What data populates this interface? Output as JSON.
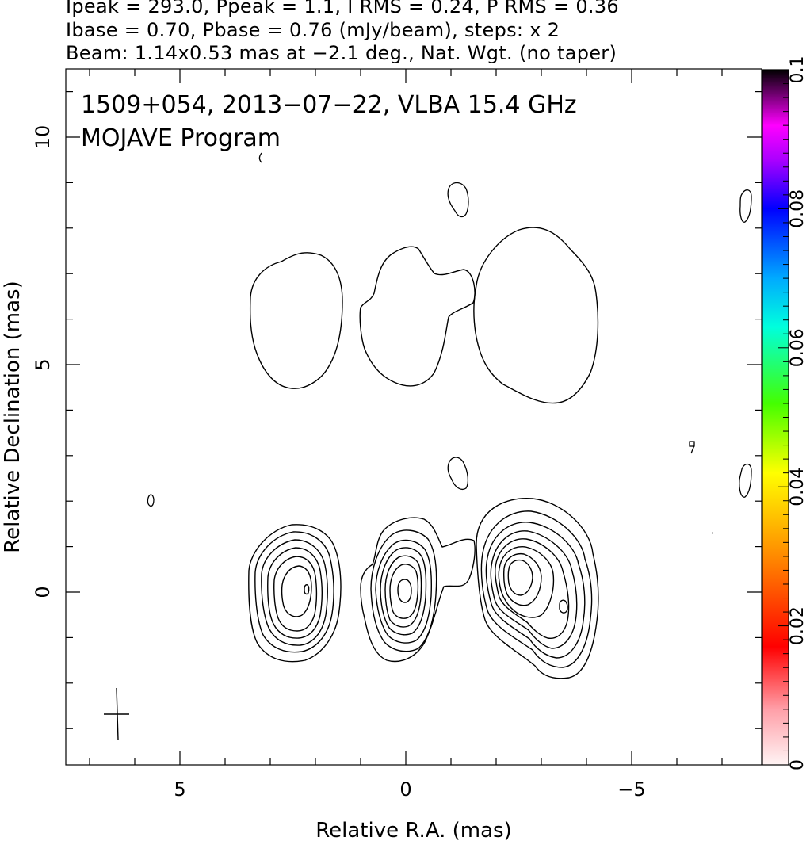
{
  "header": {
    "line1": "Ipeak = 293.0, Ppeak = 1.1, I RMS = 0.24, P RMS = 0.36",
    "line2": "Ibase = 0.70, Pbase = 0.76 (mJy/beam), steps: x 2",
    "line3": "Beam: 1.14x0.53 mas at −2.1 deg., Nat. Wgt. (no taper)"
  },
  "chart_data": {
    "type": "contour",
    "title_line1": "1509+054, 2013−07−22, VLBA 15.4 GHz",
    "title_line2": "MOJAVE Program",
    "xlabel": "Relative R.A. (mas)",
    "ylabel": "Relative Declination (mas)",
    "xlim": [
      8.0,
      -7.4
    ],
    "ylim": [
      -3.8,
      11.5
    ],
    "x_ticks": [
      5,
      0,
      -5
    ],
    "x_tick_labels": [
      "5",
      "0",
      "−5"
    ],
    "y_ticks": [
      0,
      5,
      10
    ],
    "y_tick_labels": [
      "0",
      "5",
      "10"
    ],
    "colorbar": {
      "range": [
        0,
        0.1
      ],
      "ticks": [
        0,
        0.02,
        0.04,
        0.06,
        0.08,
        0.1
      ],
      "tick_labels": [
        "0",
        "0.02",
        "0.04",
        "0.06",
        "0.08",
        "0.1"
      ]
    },
    "components": [
      {
        "name": "stokes-I-west",
        "x": -2.5,
        "y": 0.3,
        "levels": 9
      },
      {
        "name": "stokes-I-core",
        "x": 0.0,
        "y": 0.0,
        "levels": 7
      },
      {
        "name": "stokes-I-east",
        "x": 2.2,
        "y": 0.0,
        "levels": 6
      },
      {
        "name": "fractional-pol-west",
        "x": -2.5,
        "y": 6.0,
        "levels": 1
      },
      {
        "name": "fractional-pol-core",
        "x": 0.0,
        "y": 6.0,
        "levels": 1
      },
      {
        "name": "fractional-pol-east",
        "x": 2.2,
        "y": 6.0,
        "levels": 1
      }
    ],
    "beam": {
      "major_mas": 1.14,
      "minor_mas": 0.53,
      "pa_deg": -2.1,
      "center": [
        6.4,
        -2.7
      ]
    }
  }
}
